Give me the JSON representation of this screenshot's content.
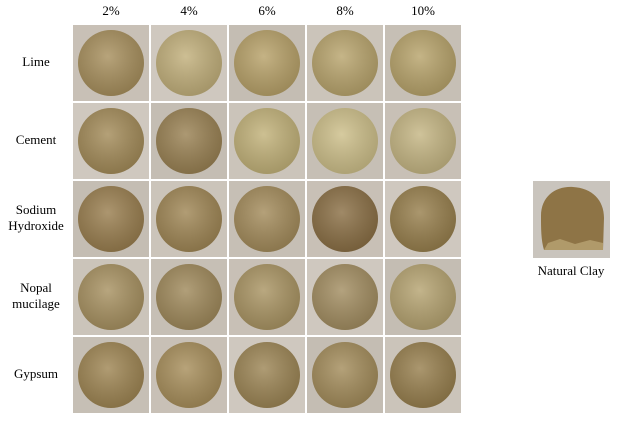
{
  "columns": [
    "2%",
    "4%",
    "6%",
    "8%",
    "10%"
  ],
  "rows": [
    [
      "Lime"
    ],
    [
      "Cement"
    ],
    [
      "Sodium",
      "Hydroxide"
    ],
    [
      "Nopal",
      "mucilage"
    ],
    [
      "Gypsum"
    ]
  ],
  "reference": {
    "caption": "Natural Clay"
  }
}
